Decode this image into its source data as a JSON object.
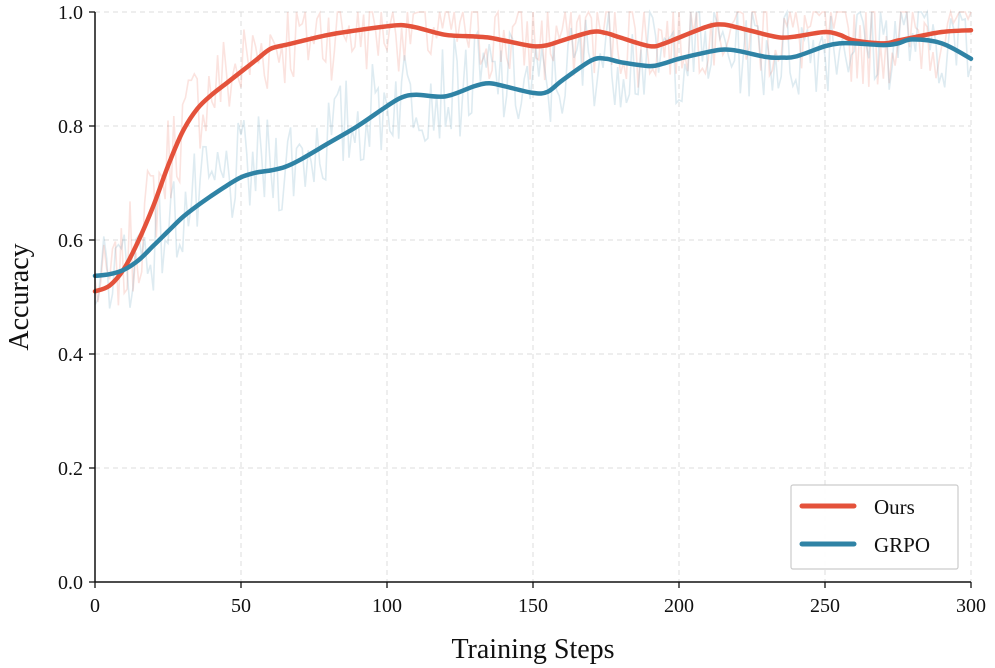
{
  "chart_data": {
    "type": "line",
    "title": "",
    "xlabel": "Training Steps",
    "ylabel": "Accuracy",
    "xlim": [
      0,
      300
    ],
    "ylim": [
      0.0,
      1.0
    ],
    "xticks": [
      0,
      50,
      100,
      150,
      200,
      250,
      300
    ],
    "yticks": [
      0.0,
      0.2,
      0.4,
      0.6,
      0.8,
      1.0
    ],
    "xtick_labels": [
      "0",
      "50",
      "100",
      "150",
      "200",
      "250",
      "300"
    ],
    "ytick_labels": [
      "0.0",
      "0.2",
      "0.4",
      "0.6",
      "0.8",
      "1.0"
    ],
    "grid": true,
    "legend_position": "bottom-right",
    "raw_noise_seed": 7,
    "series": [
      {
        "name": "Ours",
        "color": "#e4523b",
        "smoothed": {
          "x": [
            0,
            5,
            10,
            15,
            20,
            25,
            30,
            35,
            40,
            45,
            50,
            55,
            60,
            65,
            70,
            80,
            90,
            100,
            105,
            110,
            120,
            130,
            135,
            140,
            150,
            155,
            160,
            170,
            175,
            180,
            190,
            195,
            200,
            210,
            215,
            220,
            230,
            235,
            240,
            250,
            255,
            260,
            270,
            275,
            280,
            290,
            300
          ],
          "y": [
            0.51,
            0.52,
            0.55,
            0.6,
            0.66,
            0.73,
            0.79,
            0.83,
            0.855,
            0.875,
            0.895,
            0.915,
            0.935,
            0.942,
            0.948,
            0.96,
            0.968,
            0.975,
            0.977,
            0.973,
            0.96,
            0.957,
            0.955,
            0.95,
            0.94,
            0.942,
            0.95,
            0.965,
            0.963,
            0.955,
            0.94,
            0.945,
            0.955,
            0.975,
            0.978,
            0.973,
            0.96,
            0.955,
            0.957,
            0.965,
            0.96,
            0.95,
            0.945,
            0.95,
            0.955,
            0.965,
            0.968
          ]
        }
      },
      {
        "name": "GRPO",
        "color": "#2f83a5",
        "smoothed": {
          "x": [
            0,
            5,
            10,
            15,
            20,
            25,
            30,
            35,
            40,
            45,
            50,
            55,
            60,
            65,
            70,
            80,
            90,
            100,
            105,
            110,
            120,
            130,
            135,
            140,
            150,
            155,
            160,
            170,
            175,
            180,
            190,
            195,
            200,
            210,
            215,
            220,
            230,
            235,
            240,
            250,
            255,
            260,
            270,
            275,
            280,
            290,
            300
          ],
          "y": [
            0.537,
            0.54,
            0.548,
            0.565,
            0.59,
            0.615,
            0.64,
            0.66,
            0.678,
            0.695,
            0.71,
            0.718,
            0.722,
            0.728,
            0.74,
            0.77,
            0.8,
            0.835,
            0.85,
            0.855,
            0.852,
            0.87,
            0.875,
            0.87,
            0.858,
            0.86,
            0.88,
            0.915,
            0.918,
            0.912,
            0.905,
            0.91,
            0.918,
            0.93,
            0.934,
            0.932,
            0.921,
            0.92,
            0.922,
            0.94,
            0.945,
            0.945,
            0.942,
            0.945,
            0.952,
            0.945,
            0.918
          ]
        }
      }
    ]
  }
}
